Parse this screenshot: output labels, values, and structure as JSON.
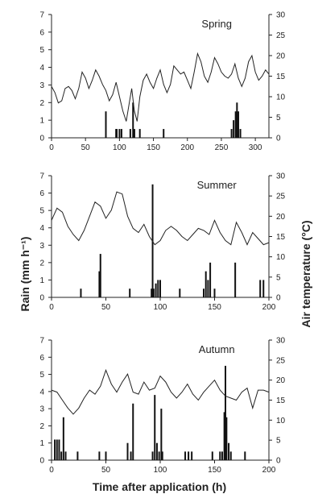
{
  "figure": {
    "ylabel_left": "Rain (mm h⁻¹)",
    "ylabel_right": "Air temperature (°C)",
    "xlabel": "Time after application (h)"
  },
  "chart_data": [
    {
      "type": "bar",
      "title": "Spring",
      "xlim": [
        0,
        320
      ],
      "xticks": [
        0,
        50,
        100,
        150,
        200,
        250,
        300
      ],
      "ylim": [
        0,
        7
      ],
      "yticks": [
        0,
        1,
        2,
        3,
        4,
        5,
        6,
        7
      ],
      "y2lim": [
        0,
        30
      ],
      "y2ticks": [
        0,
        5,
        10,
        15,
        20,
        25,
        30
      ],
      "rain": {
        "x": [
          80,
          95,
          96,
          100,
          103,
          116,
          120,
          122,
          130,
          165,
          265,
          268,
          271,
          273,
          275,
          278
        ],
        "y": [
          1.5,
          0.5,
          0.5,
          0.5,
          0.5,
          0.5,
          2.0,
          0.5,
          0.5,
          0.5,
          0.5,
          1.0,
          1.5,
          2.0,
          1.5,
          0.5
        ]
      },
      "temperature": {
        "x": [
          0,
          5,
          10,
          15,
          20,
          25,
          30,
          35,
          40,
          45,
          50,
          55,
          60,
          65,
          70,
          75,
          80,
          85,
          90,
          95,
          100,
          105,
          110,
          115,
          118,
          122,
          126,
          130,
          135,
          140,
          145,
          150,
          155,
          160,
          165,
          170,
          175,
          180,
          185,
          190,
          195,
          200,
          205,
          210,
          215,
          220,
          225,
          230,
          235,
          240,
          245,
          250,
          255,
          260,
          265,
          270,
          275,
          280,
          285,
          290,
          295,
          300,
          305,
          310,
          315,
          320
        ],
        "y": [
          12.5,
          11.0,
          8.5,
          9.0,
          12.0,
          12.5,
          11.5,
          9.5,
          12.0,
          16.0,
          14.5,
          12.0,
          14.0,
          16.5,
          15.0,
          13.0,
          11.5,
          9.0,
          10.5,
          13.5,
          10.0,
          6.5,
          4.0,
          9.0,
          12.0,
          6.5,
          4.0,
          10.0,
          14.0,
          15.5,
          13.5,
          12.0,
          14.5,
          16.5,
          13.0,
          11.0,
          13.0,
          17.5,
          16.5,
          15.5,
          16.0,
          14.0,
          12.0,
          16.0,
          20.5,
          18.5,
          15.0,
          13.5,
          16.0,
          19.5,
          18.0,
          16.0,
          15.0,
          14.5,
          15.5,
          18.0,
          14.5,
          12.5,
          14.5,
          18.5,
          20.0,
          16.0,
          14.0,
          15.0,
          16.5,
          15.5
        ]
      }
    },
    {
      "type": "bar",
      "title": "Summer",
      "xlim": [
        0,
        200
      ],
      "xticks": [
        0,
        50,
        100,
        150,
        200
      ],
      "ylim": [
        0,
        7
      ],
      "yticks": [
        0,
        1,
        2,
        3,
        4,
        5,
        6,
        7
      ],
      "y2lim": [
        0,
        30
      ],
      "y2ticks": [
        0,
        5,
        10,
        15,
        20,
        25,
        30
      ],
      "rain": {
        "x": [
          27,
          44,
          45,
          72,
          92,
          93,
          94,
          96,
          98,
          100,
          118,
          140,
          142,
          144,
          146,
          150,
          169,
          192,
          195
        ],
        "y": [
          0.5,
          1.5,
          2.5,
          0.5,
          0.5,
          6.5,
          0.5,
          0.8,
          1.0,
          1.0,
          0.5,
          0.5,
          1.5,
          1.0,
          2.0,
          0.5,
          2.0,
          1.0,
          1.0
        ]
      },
      "temperature": {
        "x": [
          0,
          5,
          10,
          15,
          20,
          25,
          30,
          35,
          40,
          45,
          50,
          55,
          60,
          65,
          70,
          75,
          80,
          85,
          90,
          95,
          100,
          105,
          110,
          115,
          120,
          125,
          130,
          135,
          140,
          145,
          150,
          155,
          160,
          165,
          170,
          175,
          180,
          185,
          190,
          195,
          200
        ],
        "y": [
          19.0,
          22.0,
          21.0,
          17.5,
          15.5,
          14.0,
          16.5,
          20.0,
          23.5,
          22.5,
          19.5,
          21.5,
          26.0,
          25.5,
          20.0,
          17.0,
          16.0,
          18.0,
          15.0,
          13.0,
          14.0,
          16.5,
          17.5,
          16.5,
          15.0,
          14.0,
          15.5,
          17.0,
          16.5,
          15.5,
          19.0,
          16.0,
          14.0,
          13.0,
          18.5,
          16.0,
          13.0,
          16.0,
          14.5,
          13.0,
          13.5
        ]
      }
    },
    {
      "type": "bar",
      "title": "Autumn",
      "xlim": [
        0,
        200
      ],
      "xticks": [
        0,
        50,
        100,
        150,
        200
      ],
      "ylim": [
        0,
        7
      ],
      "yticks": [
        0,
        1,
        2,
        3,
        4,
        5,
        6,
        7
      ],
      "y2lim": [
        0,
        30
      ],
      "y2ticks": [
        0,
        5,
        10,
        15,
        20,
        25,
        30
      ],
      "rain": {
        "x": [
          3,
          5,
          7,
          9,
          11,
          13,
          24,
          44,
          50,
          70,
          73,
          75,
          93,
          95,
          97,
          99,
          101,
          102,
          123,
          126,
          129,
          148,
          155,
          157,
          159,
          160,
          161,
          163,
          165,
          178
        ],
        "y": [
          1.2,
          1.2,
          1.2,
          0.5,
          2.5,
          0.5,
          0.5,
          0.5,
          0.5,
          1.0,
          0.5,
          3.3,
          0.5,
          3.8,
          1.0,
          0.5,
          3.0,
          0.5,
          0.5,
          0.5,
          0.5,
          0.5,
          0.5,
          0.5,
          2.8,
          5.5,
          2.5,
          1.0,
          0.5,
          0.5
        ]
      },
      "temperature": {
        "x": [
          0,
          5,
          10,
          15,
          20,
          25,
          30,
          35,
          40,
          45,
          50,
          55,
          60,
          65,
          70,
          75,
          80,
          85,
          90,
          95,
          100,
          105,
          110,
          115,
          120,
          125,
          130,
          135,
          140,
          145,
          150,
          155,
          160,
          165,
          170,
          175,
          180,
          185,
          190,
          195,
          200
        ],
        "y": [
          17.5,
          17.0,
          15.0,
          13.0,
          11.5,
          13.0,
          15.5,
          17.5,
          16.5,
          18.5,
          22.5,
          19.0,
          17.0,
          19.5,
          21.5,
          17.0,
          16.5,
          19.5,
          17.5,
          18.0,
          21.0,
          19.5,
          17.0,
          15.5,
          17.0,
          19.0,
          16.5,
          15.0,
          17.0,
          18.5,
          20.0,
          17.5,
          16.0,
          15.5,
          15.0,
          17.0,
          18.0,
          13.0,
          17.5,
          17.5,
          17.0
        ]
      }
    }
  ]
}
